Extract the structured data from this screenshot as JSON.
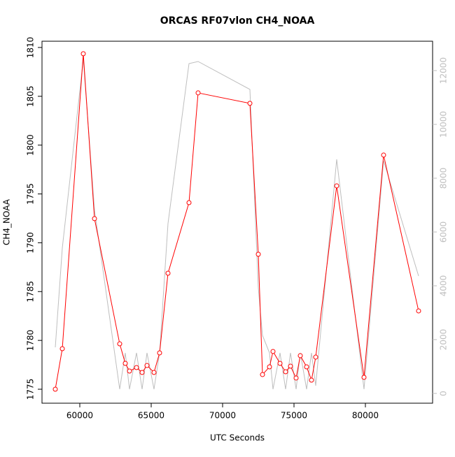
{
  "chart_data": {
    "type": "line",
    "title": "ORCAS RF07vlon CH4_NOAA",
    "x_label": "UTC Seconds",
    "y_label": "CH4_NOAA",
    "x": [
      58284,
      58775,
      60245,
      61029,
      62794,
      63186,
      63480,
      63971,
      64363,
      64706,
      65196,
      65588,
      66176,
      67647,
      68284,
      71912,
      72500,
      72794,
      73284,
      73529,
      74020,
      74412,
      74755,
      75147,
      75441,
      75882,
      76225,
      76520,
      77990,
      79902,
      81275,
      83725
    ],
    "series": [
      {
        "color": "#ff0000",
        "marker": "circle",
        "values": [
          1775.0,
          1779.15,
          1809.36,
          1792.47,
          1779.65,
          1777.65,
          1776.86,
          1777.22,
          1776.72,
          1777.43,
          1776.72,
          1778.72,
          1786.88,
          1794.11,
          1805.35,
          1804.28,
          1788.82,
          1776.5,
          1777.29,
          1778.87,
          1777.65,
          1776.79,
          1777.36,
          1776.15,
          1778.44,
          1777.29,
          1775.93,
          1778.29,
          1795.83,
          1776.22,
          1798.98,
          1783.02
        ]
      },
      {
        "color": "#bebebe",
        "axis": "y2",
        "values": [
          1714,
          5403,
          12416,
          6831,
          156,
          1506,
          156,
          1506,
          156,
          1506,
          156,
          1506,
          6312,
          12260,
          12338,
          11299,
          3922,
          2156,
          1506,
          156,
          1506,
          156,
          1506,
          156,
          1506,
          156,
          1506,
          286,
          8701,
          156,
          8649,
          4364
        ]
      }
    ],
    "xlim": [
      57353,
      84706
    ],
    "xticks": [
      60000,
      65000,
      70000,
      75000,
      80000
    ],
    "ylim": [
      1773.57,
      1810.64
    ],
    "yticks": [
      1775,
      1780,
      1785,
      1790,
      1795,
      1800,
      1805,
      1810
    ],
    "y2lim": [
      -364,
      13091
    ],
    "y2ticks": [
      0,
      2000,
      4000,
      6000,
      8000,
      10000,
      12000
    ]
  }
}
